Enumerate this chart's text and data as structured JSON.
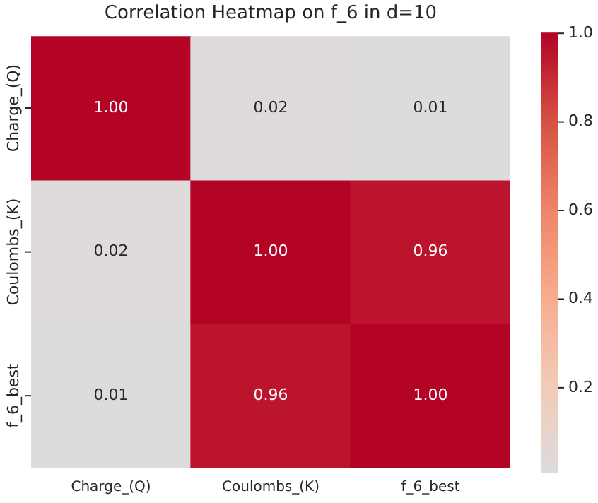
{
  "chart_data": {
    "type": "heatmap",
    "title": "Correlation Heatmap on f_6 in d=10",
    "categories": [
      "Charge_(Q)",
      "Coulombs_(K)",
      "f_6_best"
    ],
    "y_categories": [
      "Charge_(Q)",
      "Coulombs_(K)",
      "f_6_best"
    ],
    "cells": [
      [
        1.0,
        0.02,
        0.01
      ],
      [
        0.02,
        1.0,
        0.96
      ],
      [
        0.01,
        0.96,
        1.0
      ]
    ],
    "cell_labels": [
      [
        "1.00",
        "0.02",
        "0.01"
      ],
      [
        "0.02",
        "1.00",
        "0.96"
      ],
      [
        "0.01",
        "0.96",
        "1.00"
      ]
    ],
    "clim": [
      0.01,
      1.0
    ],
    "cticks": [
      0.2,
      0.4,
      0.6,
      0.8,
      {
        "value": 1,
        "label": "1.0"
      }
    ]
  }
}
